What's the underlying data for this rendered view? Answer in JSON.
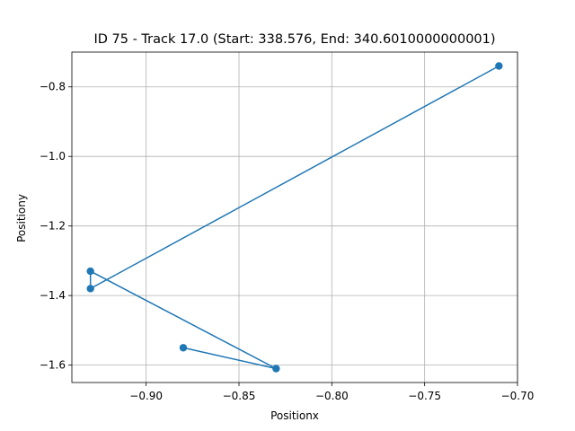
{
  "chart_data": {
    "type": "line",
    "title": "ID 75 - Track 17.0 (Start: 338.576, End: 340.6010000000001)",
    "xlabel": "Positionx",
    "ylabel": "Positiony",
    "xlim": [
      -0.94,
      -0.7
    ],
    "ylim": [
      -1.65,
      -0.7
    ],
    "xticks": [
      -0.9,
      -0.85,
      -0.8,
      -0.75,
      -0.7
    ],
    "xtick_labels": [
      "−0.90",
      "−0.85",
      "−0.80",
      "−0.75",
      "−0.70"
    ],
    "yticks": [
      -0.8,
      -1.0,
      -1.2,
      -1.4,
      -1.6
    ],
    "ytick_labels": [
      "−0.8",
      "−1.0",
      "−1.2",
      "−1.4",
      "−1.6"
    ],
    "grid": true,
    "color": "#1f77b4",
    "series": [
      {
        "x": [
          -0.88,
          -0.83,
          -0.93,
          -0.93,
          -0.71
        ],
        "y": [
          -1.55,
          -1.61,
          -1.33,
          -1.38,
          -0.74
        ]
      }
    ]
  }
}
